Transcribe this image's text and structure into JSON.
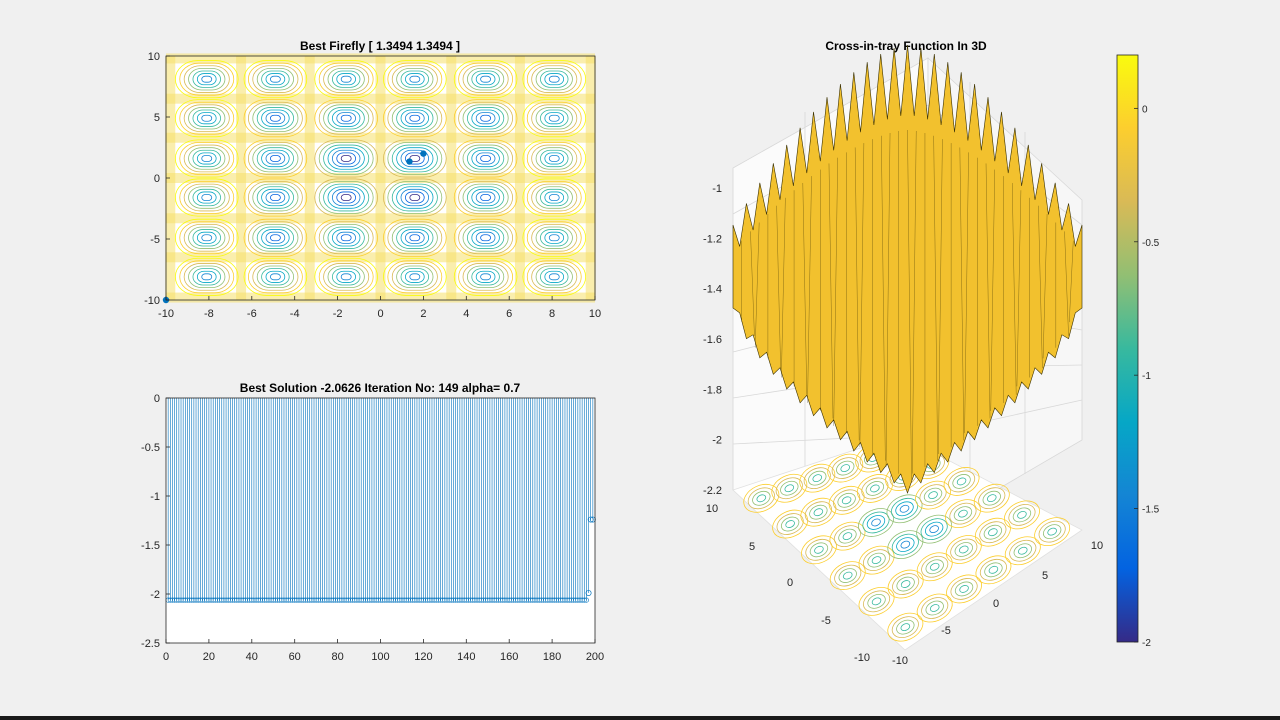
{
  "window": {
    "background": "#f0f0f0"
  },
  "colors": {
    "series": "#0072bd",
    "surface": "#f2c12e",
    "parula": [
      "#352a87",
      "#0363e1",
      "#1485d4",
      "#06a7c6",
      "#38b99e",
      "#92bf73",
      "#d9ba56",
      "#fcce2e",
      "#f9fb0e"
    ]
  },
  "chart_data": [
    {
      "id": "contour-panel",
      "type": "contour",
      "title": "Best Firefly [ 1.3494       1.3494 ]",
      "xlim": [
        -10,
        10
      ],
      "ylim": [
        -10,
        10
      ],
      "xticks": [
        -10,
        -8,
        -6,
        -4,
        -2,
        0,
        2,
        4,
        6,
        8,
        10
      ],
      "yticks": [
        -10,
        -5,
        0,
        5,
        10
      ],
      "function": "cross-in-tray",
      "points": [
        {
          "x": 1.3494,
          "y": 1.3494
        },
        {
          "x": 2.0,
          "y": 2.0
        },
        {
          "x": -10.0,
          "y": -10.0
        }
      ]
    },
    {
      "id": "convergence-panel",
      "type": "stem",
      "title": "Best Solution -2.0626   Iteration No: 149  alpha= 0.7",
      "xlim": [
        0,
        200
      ],
      "ylim": [
        -2.5,
        0
      ],
      "xticks": [
        0,
        20,
        40,
        60,
        80,
        100,
        120,
        140,
        160,
        180,
        200
      ],
      "yticks": [
        "0",
        "-0.5",
        "-1",
        "-1.5",
        "-2",
        "-2.5"
      ],
      "series": [
        {
          "x_range": [
            1,
            196
          ],
          "y": -2.0626
        },
        {
          "x": 198,
          "y": -1.24
        },
        {
          "x": 199,
          "y": -1.24
        },
        {
          "x": 197,
          "y": -1.99
        }
      ]
    },
    {
      "id": "surface-panel",
      "type": "surface3d",
      "title": "Cross-in-tray  Function In 3D",
      "zlim": [
        -2.2,
        -1
      ],
      "zticks": [
        "-1",
        "-1.2",
        "-1.4",
        "-1.6",
        "-1.8",
        "-2",
        "-2.2"
      ],
      "xticks": [
        "-10",
        "-5",
        "0",
        "5",
        "10"
      ],
      "yticks": [
        "10",
        "5",
        "0",
        "-5",
        "-10"
      ],
      "colorbar": {
        "range": [
          -2,
          0.2
        ],
        "ticks": [
          "0",
          "-0.5",
          "-1",
          "-1.5",
          "-2"
        ],
        "colormap": "parula"
      }
    }
  ]
}
